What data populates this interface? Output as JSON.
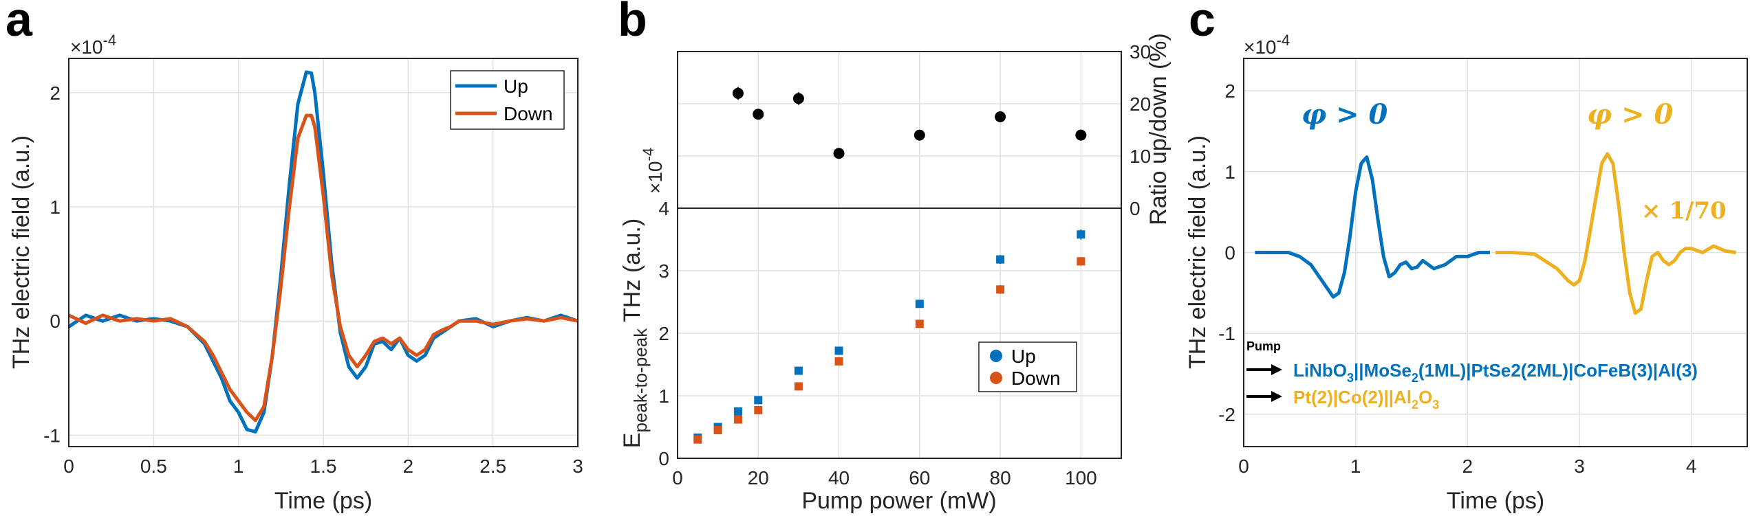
{
  "panels": {
    "a": {
      "label": "a",
      "exponent": "×10",
      "exponent_power": "-4",
      "xlabel": "Time (ps)",
      "ylabel": "THz electric field (a.u.)",
      "xlim": [
        0,
        3
      ],
      "ylim": [
        -1.1,
        2.3
      ],
      "xticks": [
        "0",
        "0.5",
        "1",
        "1.5",
        "2",
        "2.5",
        "3"
      ],
      "yticks": [
        "-1",
        "0",
        "1",
        "2"
      ],
      "legend": [
        "Up",
        "Down"
      ]
    },
    "b": {
      "label": "b",
      "exponent": "×10",
      "exponent_power": "-4",
      "xlabel": "Pump power (mW)",
      "ylabel_main": "E",
      "ylabel_sub": "peak-to-peak",
      "ylabel_tail": " THz (a.u.)",
      "y2label": "Ratio up/down (%)",
      "xticks": [
        "0",
        "20",
        "40",
        "60",
        "80",
        "100"
      ],
      "yticks": [
        "0",
        "1",
        "2",
        "3",
        "4"
      ],
      "y2ticks": [
        "0",
        "10",
        "20",
        "30"
      ],
      "legend": [
        "Up",
        "Down"
      ]
    },
    "c": {
      "label": "c",
      "exponent": "×10",
      "exponent_power": "-4",
      "xlabel": "Time (ps)",
      "ylabel": "THz electric field (a.u.)",
      "xticks": [
        "0",
        "1",
        "2",
        "3",
        "4"
      ],
      "yticks": [
        "-2",
        "-1",
        "0",
        "1",
        "2"
      ],
      "annot_left": "φ > 0",
      "annot_right": "φ > 0",
      "scale_note": "× 1/70",
      "pump_label": "Pump",
      "sample1": {
        "p1": "LiNbO",
        "s1": "3",
        "p2": "||MoSe",
        "s2": "2",
        "p3": "(1ML)|PtSe2(2ML)|CoFeB(3)|Al(3)"
      },
      "sample2": {
        "p1": "Pt(2)|Co(2)||Al",
        "s1": "2",
        "p2": "O",
        "s2": "3"
      }
    }
  },
  "colors": {
    "up": "#0072BD",
    "down": "#D95319",
    "yellow": "#EDB120",
    "black": "#000000"
  },
  "chart_data": [
    {
      "type": "line",
      "title": "a",
      "xlabel": "Time (ps)",
      "ylabel": "THz electric field (a.u.) ×10^-4",
      "xlim": [
        0,
        3
      ],
      "ylim": [
        -1.1,
        2.3
      ],
      "series": [
        {
          "name": "Up",
          "x": [
            0,
            0.1,
            0.2,
            0.3,
            0.4,
            0.5,
            0.6,
            0.7,
            0.8,
            0.85,
            0.9,
            0.95,
            1.0,
            1.05,
            1.1,
            1.15,
            1.2,
            1.25,
            1.3,
            1.35,
            1.4,
            1.43,
            1.45,
            1.5,
            1.55,
            1.6,
            1.65,
            1.7,
            1.75,
            1.8,
            1.85,
            1.9,
            1.95,
            2.0,
            2.05,
            2.1,
            2.15,
            2.2,
            2.25,
            2.3,
            2.4,
            2.5,
            2.6,
            2.7,
            2.8,
            2.9,
            3.0
          ],
          "y": [
            -0.05,
            0.05,
            0.0,
            0.05,
            0.0,
            0.02,
            0.0,
            -0.05,
            -0.2,
            -0.35,
            -0.5,
            -0.7,
            -0.8,
            -0.95,
            -0.97,
            -0.8,
            -0.3,
            0.4,
            1.2,
            1.9,
            2.18,
            2.17,
            2.0,
            1.3,
            0.5,
            -0.1,
            -0.4,
            -0.5,
            -0.4,
            -0.2,
            -0.18,
            -0.25,
            -0.15,
            -0.3,
            -0.35,
            -0.3,
            -0.15,
            -0.1,
            -0.05,
            0.0,
            0.02,
            -0.05,
            0.0,
            0.03,
            0.0,
            0.05,
            0.0
          ]
        },
        {
          "name": "Down",
          "x": [
            0,
            0.1,
            0.2,
            0.3,
            0.4,
            0.5,
            0.6,
            0.7,
            0.8,
            0.85,
            0.9,
            0.95,
            1.0,
            1.05,
            1.1,
            1.15,
            1.2,
            1.25,
            1.3,
            1.35,
            1.4,
            1.43,
            1.45,
            1.5,
            1.55,
            1.6,
            1.65,
            1.7,
            1.75,
            1.8,
            1.85,
            1.9,
            1.95,
            2.0,
            2.05,
            2.1,
            2.15,
            2.2,
            2.25,
            2.3,
            2.4,
            2.5,
            2.6,
            2.7,
            2.8,
            2.9,
            3.0
          ],
          "y": [
            0.05,
            -0.02,
            0.05,
            0.0,
            0.02,
            0.0,
            0.02,
            -0.05,
            -0.18,
            -0.3,
            -0.45,
            -0.6,
            -0.7,
            -0.8,
            -0.87,
            -0.75,
            -0.3,
            0.3,
            1.0,
            1.6,
            1.8,
            1.8,
            1.7,
            1.1,
            0.4,
            -0.05,
            -0.3,
            -0.4,
            -0.3,
            -0.18,
            -0.15,
            -0.2,
            -0.15,
            -0.25,
            -0.3,
            -0.25,
            -0.12,
            -0.08,
            -0.05,
            0.0,
            0.0,
            -0.03,
            0.0,
            0.02,
            0.0,
            0.03,
            0.0
          ]
        }
      ]
    },
    {
      "type": "scatter",
      "title": "b (top)",
      "xlabel": "Pump power (mW)",
      "ylabel": "Ratio up/down (%)",
      "ylim": [
        0,
        30
      ],
      "series": [
        {
          "name": "Ratio",
          "x": [
            15,
            20,
            30,
            40,
            60,
            80,
            100
          ],
          "y": [
            22,
            18,
            21,
            10.5,
            14,
            17.5,
            14
          ],
          "err": [
            1.2,
            1.0,
            1.2,
            0.8,
            0.8,
            1.0,
            0.8
          ]
        }
      ]
    },
    {
      "type": "scatter",
      "title": "b (bottom)",
      "xlabel": "Pump power (mW)",
      "ylabel": "E peak-to-peak THz (a.u.) ×10^-4",
      "xlim": [
        0,
        110
      ],
      "ylim": [
        0,
        4
      ],
      "series": [
        {
          "name": "Up",
          "x": [
            5,
            10,
            15,
            20,
            30,
            40,
            60,
            80,
            100
          ],
          "y": [
            0.33,
            0.5,
            0.75,
            0.93,
            1.4,
            1.72,
            2.47,
            3.18,
            3.58
          ],
          "err": [
            0.04,
            0.04,
            0.05,
            0.05,
            0.05,
            0.05,
            0.06,
            0.07,
            0.08
          ]
        },
        {
          "name": "Down",
          "x": [
            5,
            10,
            15,
            20,
            30,
            40,
            60,
            80,
            100
          ],
          "y": [
            0.3,
            0.45,
            0.62,
            0.77,
            1.15,
            1.55,
            2.15,
            2.7,
            3.15
          ],
          "err": [
            0.04,
            0.04,
            0.05,
            0.05,
            0.05,
            0.05,
            0.06,
            0.07,
            0.07
          ]
        }
      ]
    },
    {
      "type": "line",
      "title": "c",
      "xlabel": "Time (ps)",
      "ylabel": "THz electric field (a.u.) ×10^-4",
      "xlim": [
        0,
        4.5
      ],
      "ylim": [
        -2.4,
        2.4
      ],
      "series": [
        {
          "name": "LiNbO3||MoSe2(1ML)|PtSe2(2ML)|CoFeB(3)|Al(3)",
          "x": [
            0.1,
            0.2,
            0.3,
            0.4,
            0.5,
            0.6,
            0.7,
            0.8,
            0.85,
            0.9,
            0.95,
            1.0,
            1.05,
            1.1,
            1.15,
            1.2,
            1.25,
            1.3,
            1.35,
            1.4,
            1.45,
            1.5,
            1.55,
            1.6,
            1.7,
            1.8,
            1.9,
            2.0,
            2.1,
            2.2
          ],
          "y": [
            0.0,
            0.0,
            0.0,
            0.0,
            -0.05,
            -0.15,
            -0.35,
            -0.55,
            -0.5,
            -0.25,
            0.2,
            0.75,
            1.1,
            1.18,
            0.9,
            0.4,
            -0.05,
            -0.3,
            -0.25,
            -0.15,
            -0.12,
            -0.2,
            -0.18,
            -0.1,
            -0.2,
            -0.15,
            -0.05,
            -0.05,
            0.0,
            0.0
          ]
        },
        {
          "name": "Pt(2)|Co(2)||Al2O3 (×1/70)",
          "x": [
            2.25,
            2.4,
            2.6,
            2.8,
            2.9,
            2.95,
            3.0,
            3.05,
            3.1,
            3.15,
            3.2,
            3.25,
            3.3,
            3.35,
            3.4,
            3.45,
            3.5,
            3.55,
            3.6,
            3.65,
            3.7,
            3.75,
            3.8,
            3.85,
            3.9,
            3.95,
            4.0,
            4.1,
            4.2,
            4.3,
            4.4
          ],
          "y": [
            0.0,
            0.0,
            -0.02,
            -0.2,
            -0.35,
            -0.4,
            -0.35,
            -0.1,
            0.3,
            0.7,
            1.1,
            1.22,
            1.1,
            0.6,
            0.0,
            -0.5,
            -0.75,
            -0.7,
            -0.35,
            -0.05,
            0.0,
            -0.1,
            -0.15,
            -0.1,
            0.0,
            0.05,
            0.05,
            0.0,
            0.08,
            0.02,
            0.0
          ]
        }
      ]
    }
  ]
}
